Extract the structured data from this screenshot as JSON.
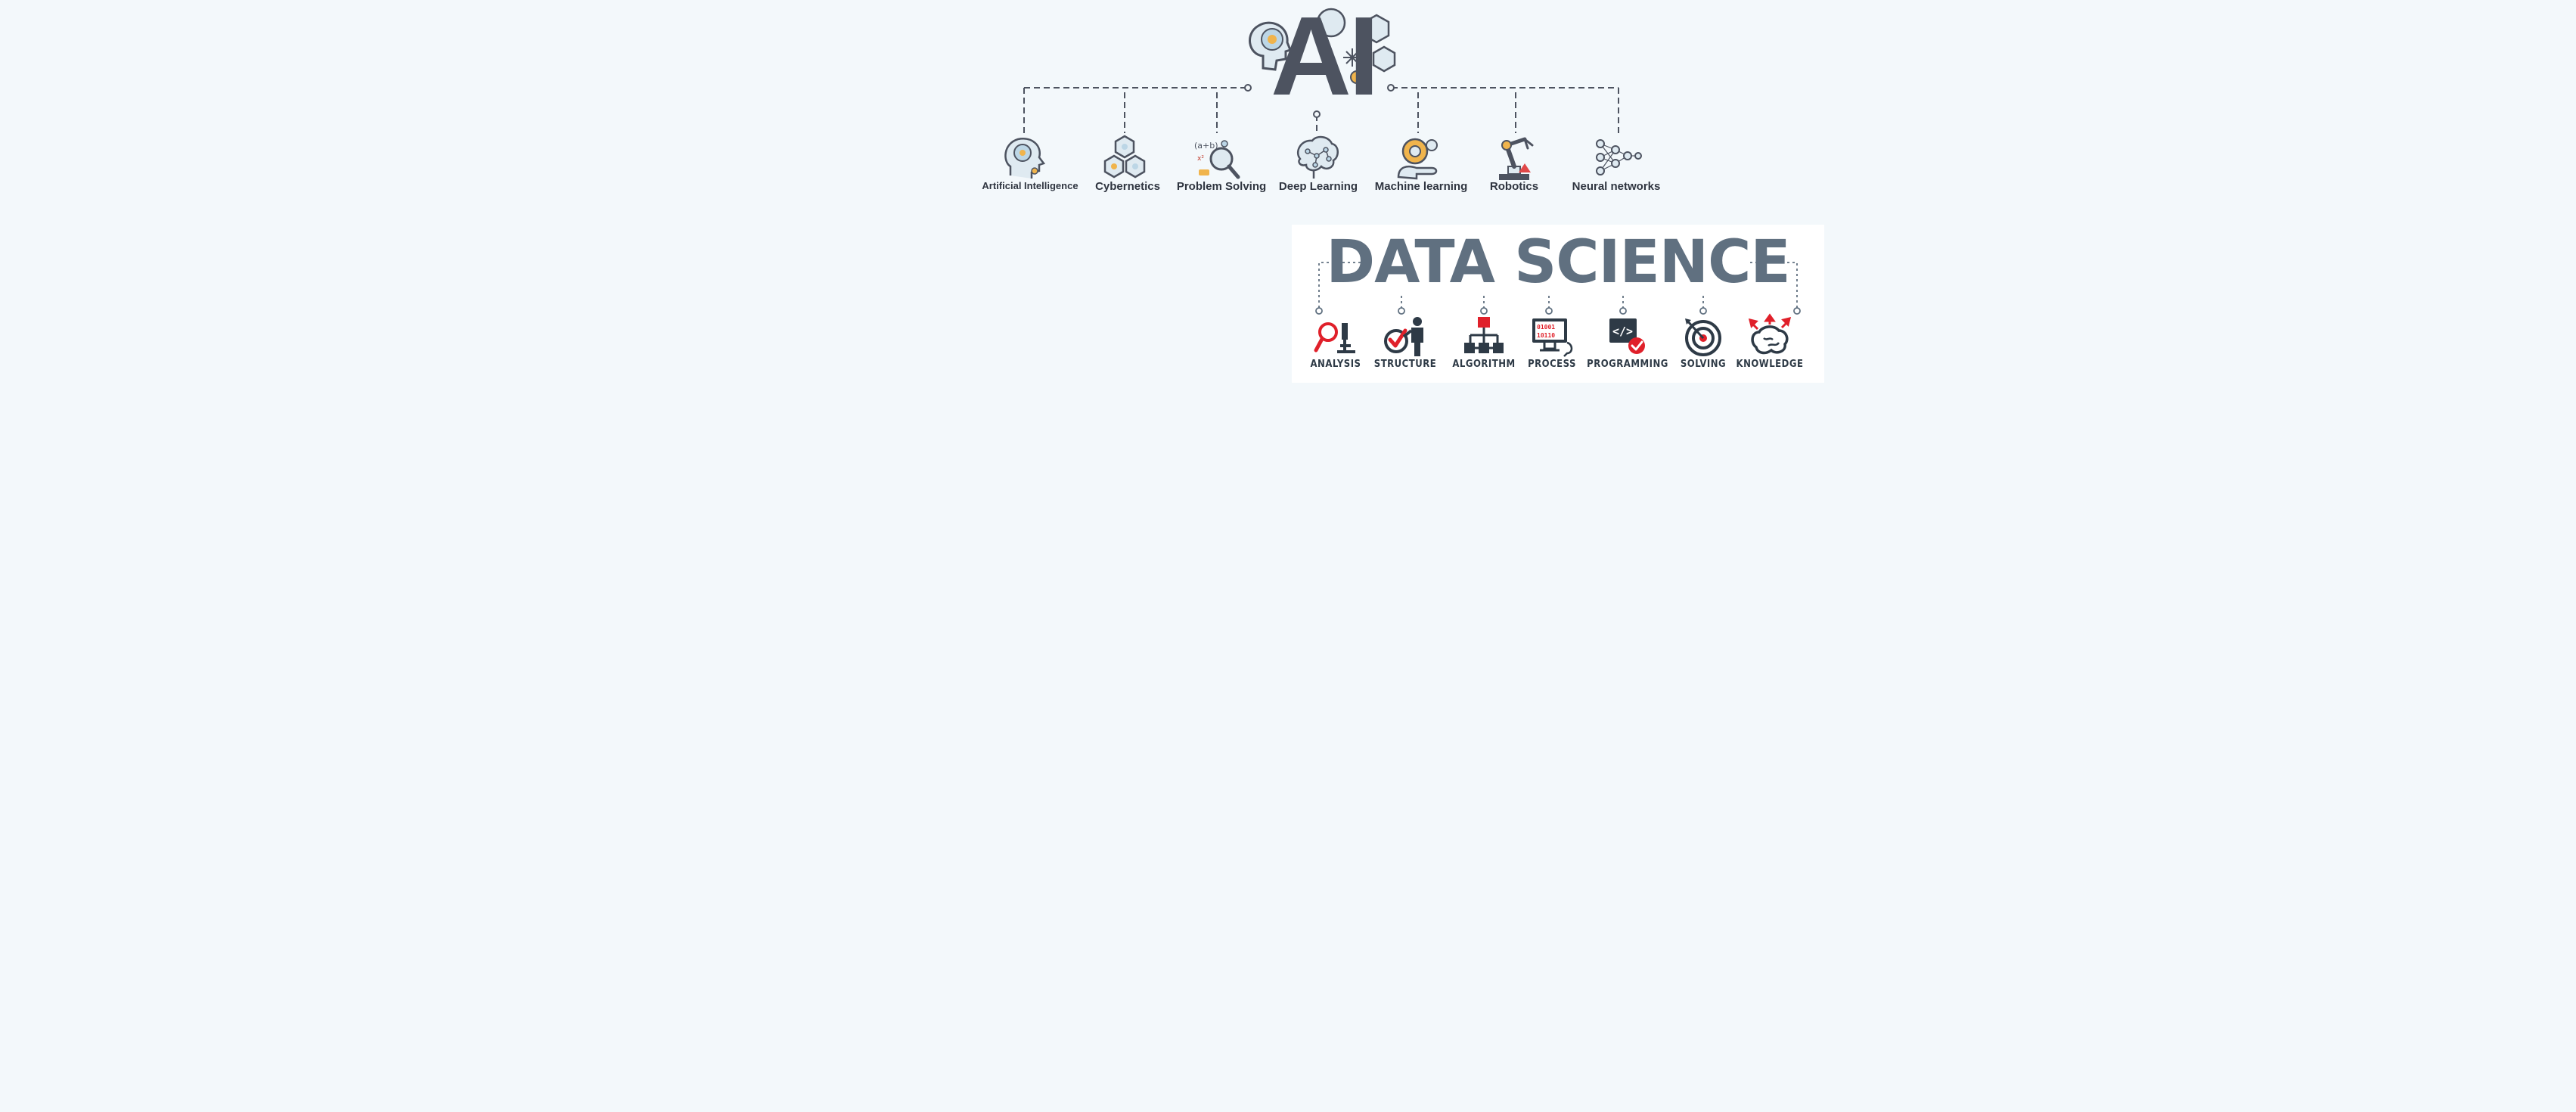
{
  "ai_diagram": {
    "title": "AI",
    "items": [
      {
        "label": "Artificial Intelligence",
        "icon": "head-brain-icon"
      },
      {
        "label": "Cybernetics",
        "icon": "cubes-network-icon"
      },
      {
        "label": "Problem Solving",
        "icon": "magnifier-formula-icon"
      },
      {
        "label": "Deep Learning",
        "icon": "brain-network-icon"
      },
      {
        "label": "Machine learning",
        "icon": "hand-gear-icon"
      },
      {
        "label": "Robotics",
        "icon": "robot-arm-icon"
      },
      {
        "label": "Neural networks",
        "icon": "neural-network-icon"
      }
    ]
  },
  "data_science": {
    "title": "DATA SCIENCE",
    "items": [
      {
        "label": "ANALYSIS",
        "icon": "microscope-magnifier-icon"
      },
      {
        "label": "STRUCTURE",
        "icon": "person-checklist-icon"
      },
      {
        "label": "ALGORITHM",
        "icon": "flowchart-icon"
      },
      {
        "label": "PROCESS",
        "icon": "monitor-binary-icon"
      },
      {
        "label": "PROGRAMMING",
        "icon": "code-check-icon"
      },
      {
        "label": "SOLVING",
        "icon": "target-icon"
      },
      {
        "label": "KNOWLEDGE",
        "icon": "brain-arrows-icon"
      }
    ],
    "accent": "#e0202a",
    "dark": "#2e3a46"
  },
  "colors": {
    "background": "#f3f8fb",
    "ai_text": "#4d5360",
    "ai_accent": "#f0b44c",
    "ai_icon_fill": "#bcd6e6"
  }
}
